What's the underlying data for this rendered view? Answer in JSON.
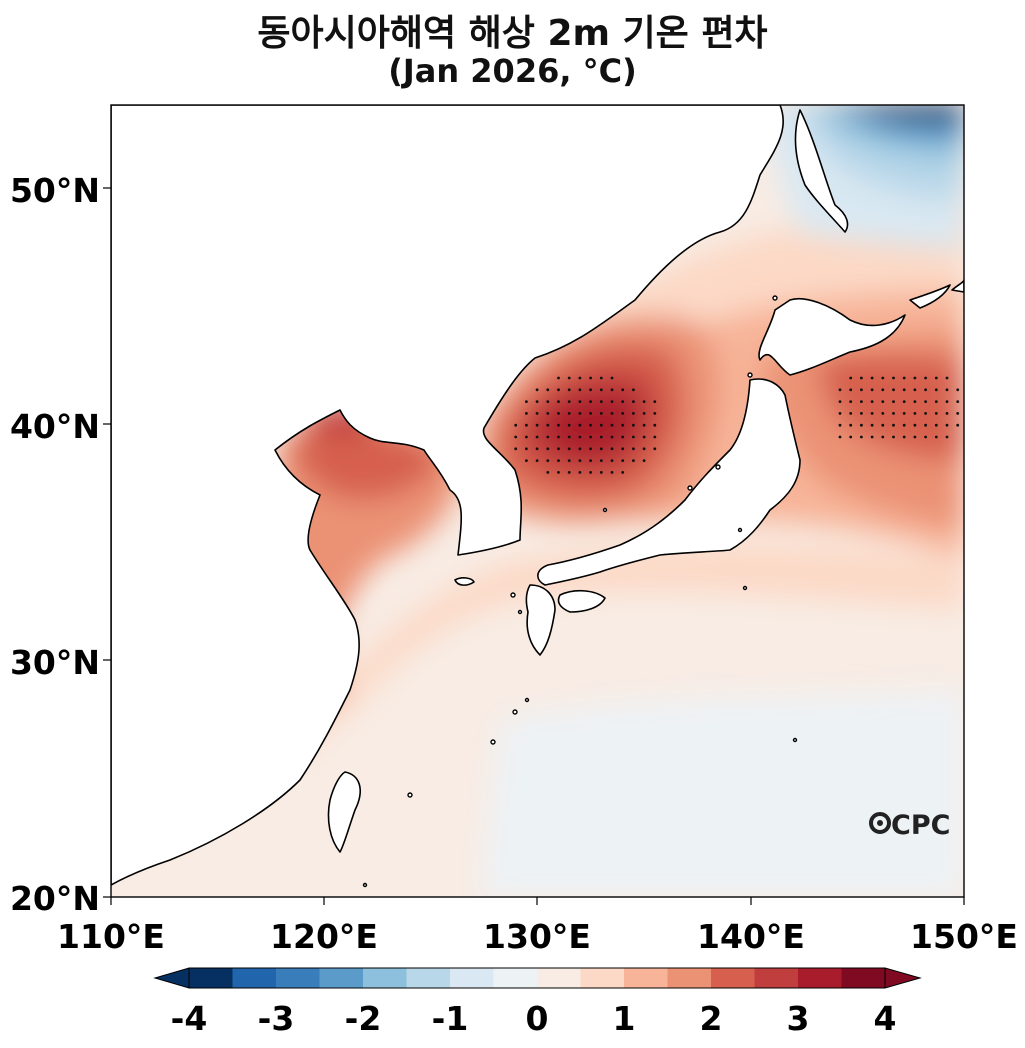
{
  "title": "동아시아해역 해상 2m 기온 편차",
  "subtitle": "(Jan 2026, °C)",
  "watermark": "CPC",
  "map": {
    "lon_range": [
      110,
      150
    ],
    "lat_range": [
      20,
      53.5
    ],
    "x_ticks": [
      "110°E",
      "120°E",
      "130°E",
      "140°E",
      "150°E"
    ],
    "y_ticks": [
      "20°N",
      "30°N",
      "40°N",
      "50°N"
    ]
  },
  "colorbar": {
    "ticks": [
      "-4",
      "-3",
      "-2",
      "-1",
      "0",
      "1",
      "2",
      "3",
      "4"
    ],
    "levels": [
      -4,
      -3.5,
      -3,
      -2.5,
      -2,
      -1.5,
      -1,
      -0.5,
      0,
      0.5,
      1,
      1.5,
      2,
      2.5,
      3,
      3.5,
      4
    ],
    "colors": [
      "#053061",
      "#2166ac",
      "#3a7dbb",
      "#5a9bc9",
      "#8cc0dd",
      "#b8d7e9",
      "#d9e8f2",
      "#edf2f5",
      "#f8ece4",
      "#fcd9c6",
      "#f7b498",
      "#eb9275",
      "#d6604d",
      "#c13e3e",
      "#a81c2c",
      "#7f0a22"
    ],
    "extend": "both"
  }
}
